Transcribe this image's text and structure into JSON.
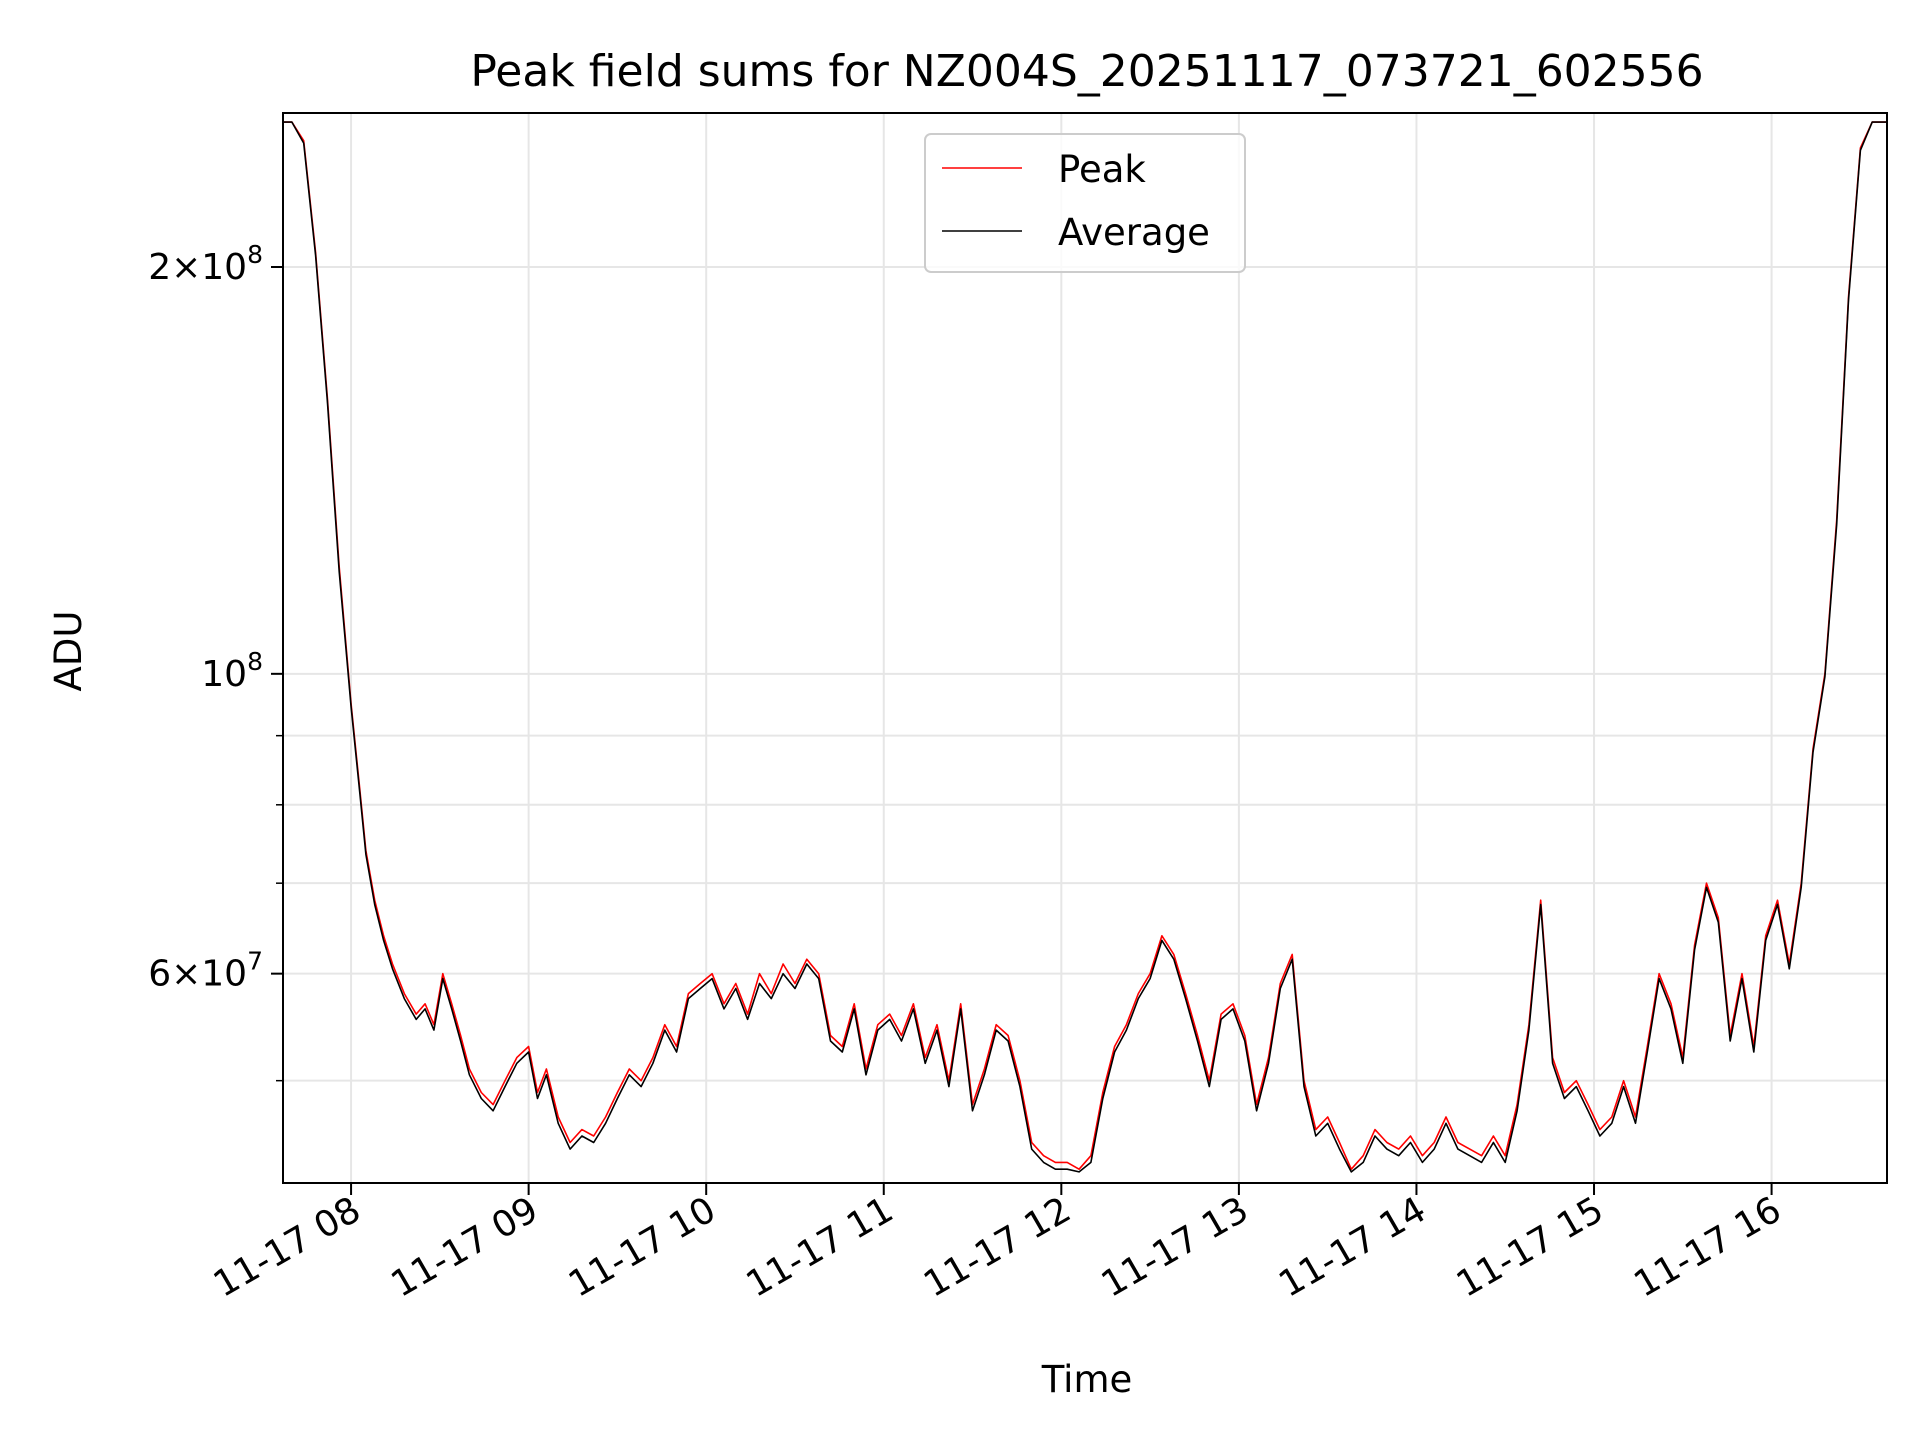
{
  "chart_data": {
    "type": "line",
    "title": "Peak field sums for NZ004S_20251117_073721_602556",
    "xlabel": "Time",
    "ylabel": "ADU",
    "y_scale": "log",
    "grid": true,
    "legend_position": "top-center",
    "xlim": [
      "2025-11-17 07:37",
      "2025-11-17 16:39"
    ],
    "ylim": [
      42000000,
      260000000
    ],
    "x_ticks": [
      {
        "value": "2025-11-17 08:00",
        "label": "11-17 08"
      },
      {
        "value": "2025-11-17 09:00",
        "label": "11-17 09"
      },
      {
        "value": "2025-11-17 10:00",
        "label": "11-17 10"
      },
      {
        "value": "2025-11-17 11:00",
        "label": "11-17 11"
      },
      {
        "value": "2025-11-17 12:00",
        "label": "11-17 12"
      },
      {
        "value": "2025-11-17 13:00",
        "label": "11-17 13"
      },
      {
        "value": "2025-11-17 14:00",
        "label": "11-17 14"
      },
      {
        "value": "2025-11-17 15:00",
        "label": "11-17 15"
      },
      {
        "value": "2025-11-17 16:00",
        "label": "11-17 16"
      }
    ],
    "y_major_ticks": [
      {
        "value": 200000000,
        "mantissa": "2",
        "exponent": "8"
      },
      {
        "value": 100000000,
        "mantissa": "",
        "exponent": "8"
      },
      {
        "value": 60000000,
        "mantissa": "6",
        "exponent": "7"
      }
    ],
    "y_minor_grid": [
      50000000,
      70000000,
      80000000,
      90000000
    ],
    "series": [
      {
        "name": "Peak",
        "color": "#ff0000",
        "x": [
          "2025-11-17 07:37",
          "2025-11-17 07:40",
          "2025-11-17 07:44",
          "2025-11-17 07:48",
          "2025-11-17 07:52",
          "2025-11-17 07:56",
          "2025-11-17 08:00",
          "2025-11-17 08:03",
          "2025-11-17 08:05",
          "2025-11-17 08:08",
          "2025-11-17 08:11",
          "2025-11-17 08:14",
          "2025-11-17 08:18",
          "2025-11-17 08:22",
          "2025-11-17 08:25",
          "2025-11-17 08:28",
          "2025-11-17 08:31",
          "2025-11-17 08:34",
          "2025-11-17 08:37",
          "2025-11-17 08:40",
          "2025-11-17 08:44",
          "2025-11-17 08:48",
          "2025-11-17 08:52",
          "2025-11-17 08:56",
          "2025-11-17 09:00",
          "2025-11-17 09:03",
          "2025-11-17 09:06",
          "2025-11-17 09:10",
          "2025-11-17 09:14",
          "2025-11-17 09:18",
          "2025-11-17 09:22",
          "2025-11-17 09:26",
          "2025-11-17 09:30",
          "2025-11-17 09:34",
          "2025-11-17 09:38",
          "2025-11-17 09:42",
          "2025-11-17 09:46",
          "2025-11-17 09:50",
          "2025-11-17 09:54",
          "2025-11-17 09:58",
          "2025-11-17 10:02",
          "2025-11-17 10:06",
          "2025-11-17 10:10",
          "2025-11-17 10:14",
          "2025-11-17 10:18",
          "2025-11-17 10:22",
          "2025-11-17 10:26",
          "2025-11-17 10:30",
          "2025-11-17 10:34",
          "2025-11-17 10:38",
          "2025-11-17 10:42",
          "2025-11-17 10:46",
          "2025-11-17 10:50",
          "2025-11-17 10:54",
          "2025-11-17 10:58",
          "2025-11-17 11:02",
          "2025-11-17 11:06",
          "2025-11-17 11:10",
          "2025-11-17 11:14",
          "2025-11-17 11:18",
          "2025-11-17 11:22",
          "2025-11-17 11:26",
          "2025-11-17 11:30",
          "2025-11-17 11:34",
          "2025-11-17 11:38",
          "2025-11-17 11:42",
          "2025-11-17 11:46",
          "2025-11-17 11:50",
          "2025-11-17 11:54",
          "2025-11-17 11:58",
          "2025-11-17 12:02",
          "2025-11-17 12:06",
          "2025-11-17 12:10",
          "2025-11-17 12:14",
          "2025-11-17 12:18",
          "2025-11-17 12:22",
          "2025-11-17 12:26",
          "2025-11-17 12:30",
          "2025-11-17 12:34",
          "2025-11-17 12:38",
          "2025-11-17 12:42",
          "2025-11-17 12:46",
          "2025-11-17 12:50",
          "2025-11-17 12:54",
          "2025-11-17 12:58",
          "2025-11-17 13:02",
          "2025-11-17 13:06",
          "2025-11-17 13:10",
          "2025-11-17 13:14",
          "2025-11-17 13:18",
          "2025-11-17 13:22",
          "2025-11-17 13:26",
          "2025-11-17 13:30",
          "2025-11-17 13:34",
          "2025-11-17 13:38",
          "2025-11-17 13:42",
          "2025-11-17 13:46",
          "2025-11-17 13:50",
          "2025-11-17 13:54",
          "2025-11-17 13:58",
          "2025-11-17 14:02",
          "2025-11-17 14:06",
          "2025-11-17 14:10",
          "2025-11-17 14:14",
          "2025-11-17 14:18",
          "2025-11-17 14:22",
          "2025-11-17 14:26",
          "2025-11-17 14:30",
          "2025-11-17 14:34",
          "2025-11-17 14:38",
          "2025-11-17 14:42",
          "2025-11-17 14:46",
          "2025-11-17 14:50",
          "2025-11-17 14:54",
          "2025-11-17 14:58",
          "2025-11-17 15:02",
          "2025-11-17 15:06",
          "2025-11-17 15:10",
          "2025-11-17 15:14",
          "2025-11-17 15:18",
          "2025-11-17 15:22",
          "2025-11-17 15:26",
          "2025-11-17 15:30",
          "2025-11-17 15:34",
          "2025-11-17 15:38",
          "2025-11-17 15:42",
          "2025-11-17 15:46",
          "2025-11-17 15:50",
          "2025-11-17 15:54",
          "2025-11-17 15:58",
          "2025-11-17 16:02",
          "2025-11-17 16:06",
          "2025-11-17 16:10",
          "2025-11-17 16:14",
          "2025-11-17 16:18",
          "2025-11-17 16:22",
          "2025-11-17 16:26",
          "2025-11-17 16:30",
          "2025-11-17 16:34",
          "2025-11-17 16:39"
        ],
        "y": [
          256000000,
          256000000,
          248000000,
          205000000,
          160000000,
          120000000,
          95000000,
          82000000,
          74000000,
          68000000,
          64000000,
          61000000,
          58000000,
          56000000,
          57000000,
          55000000,
          60000000,
          57000000,
          54000000,
          51000000,
          49000000,
          48000000,
          50000000,
          52000000,
          53000000,
          49000000,
          51000000,
          47000000,
          45000000,
          46000000,
          45500000,
          47000000,
          49000000,
          51000000,
          50000000,
          52000000,
          55000000,
          53000000,
          58000000,
          59000000,
          60000000,
          57000000,
          59000000,
          56000000,
          60000000,
          58000000,
          61000000,
          59000000,
          61500000,
          60000000,
          54000000,
          53000000,
          57000000,
          51000000,
          55000000,
          56000000,
          54000000,
          57000000,
          52000000,
          55000000,
          50000000,
          57000000,
          48000000,
          51000000,
          55000000,
          54000000,
          50000000,
          45000000,
          44000000,
          43500000,
          43500000,
          43000000,
          44000000,
          49000000,
          53000000,
          55000000,
          58000000,
          60000000,
          64000000,
          62000000,
          58000000,
          54000000,
          50000000,
          56000000,
          57000000,
          54000000,
          48000000,
          52000000,
          59000000,
          62000000,
          50000000,
          46000000,
          47000000,
          45000000,
          43000000,
          44000000,
          46000000,
          45000000,
          44500000,
          45500000,
          44000000,
          45000000,
          47000000,
          45000000,
          44500000,
          44000000,
          45500000,
          44000000,
          48000000,
          55000000,
          68000000,
          52000000,
          49000000,
          50000000,
          48000000,
          46000000,
          47000000,
          50000000,
          47000000,
          53000000,
          60000000,
          57000000,
          52000000,
          63000000,
          70000000,
          66000000,
          54000000,
          60000000,
          53000000,
          64000000,
          68000000,
          61000000,
          70000000,
          88000000,
          100000000,
          130000000,
          190000000,
          245000000,
          256000000,
          256000000
        ]
      },
      {
        "name": "Average",
        "color": "#000000",
        "x": [
          "2025-11-17 07:37",
          "2025-11-17 07:40",
          "2025-11-17 07:44",
          "2025-11-17 07:48",
          "2025-11-17 07:52",
          "2025-11-17 07:56",
          "2025-11-17 08:00",
          "2025-11-17 08:03",
          "2025-11-17 08:05",
          "2025-11-17 08:08",
          "2025-11-17 08:11",
          "2025-11-17 08:14",
          "2025-11-17 08:18",
          "2025-11-17 08:22",
          "2025-11-17 08:25",
          "2025-11-17 08:28",
          "2025-11-17 08:31",
          "2025-11-17 08:34",
          "2025-11-17 08:37",
          "2025-11-17 08:40",
          "2025-11-17 08:44",
          "2025-11-17 08:48",
          "2025-11-17 08:52",
          "2025-11-17 08:56",
          "2025-11-17 09:00",
          "2025-11-17 09:03",
          "2025-11-17 09:06",
          "2025-11-17 09:10",
          "2025-11-17 09:14",
          "2025-11-17 09:18",
          "2025-11-17 09:22",
          "2025-11-17 09:26",
          "2025-11-17 09:30",
          "2025-11-17 09:34",
          "2025-11-17 09:38",
          "2025-11-17 09:42",
          "2025-11-17 09:46",
          "2025-11-17 09:50",
          "2025-11-17 09:54",
          "2025-11-17 09:58",
          "2025-11-17 10:02",
          "2025-11-17 10:06",
          "2025-11-17 10:10",
          "2025-11-17 10:14",
          "2025-11-17 10:18",
          "2025-11-17 10:22",
          "2025-11-17 10:26",
          "2025-11-17 10:30",
          "2025-11-17 10:34",
          "2025-11-17 10:38",
          "2025-11-17 10:42",
          "2025-11-17 10:46",
          "2025-11-17 10:50",
          "2025-11-17 10:54",
          "2025-11-17 10:58",
          "2025-11-17 11:02",
          "2025-11-17 11:06",
          "2025-11-17 11:10",
          "2025-11-17 11:14",
          "2025-11-17 11:18",
          "2025-11-17 11:22",
          "2025-11-17 11:26",
          "2025-11-17 11:30",
          "2025-11-17 11:34",
          "2025-11-17 11:38",
          "2025-11-17 11:42",
          "2025-11-17 11:46",
          "2025-11-17 11:50",
          "2025-11-17 11:54",
          "2025-11-17 11:58",
          "2025-11-17 12:02",
          "2025-11-17 12:06",
          "2025-11-17 12:10",
          "2025-11-17 12:14",
          "2025-11-17 12:18",
          "2025-11-17 12:22",
          "2025-11-17 12:26",
          "2025-11-17 12:30",
          "2025-11-17 12:34",
          "2025-11-17 12:38",
          "2025-11-17 12:42",
          "2025-11-17 12:46",
          "2025-11-17 12:50",
          "2025-11-17 12:54",
          "2025-11-17 12:58",
          "2025-11-17 13:02",
          "2025-11-17 13:06",
          "2025-11-17 13:10",
          "2025-11-17 13:14",
          "2025-11-17 13:18",
          "2025-11-17 13:22",
          "2025-11-17 13:26",
          "2025-11-17 13:30",
          "2025-11-17 13:34",
          "2025-11-17 13:38",
          "2025-11-17 13:42",
          "2025-11-17 13:46",
          "2025-11-17 13:50",
          "2025-11-17 13:54",
          "2025-11-17 13:58",
          "2025-11-17 14:02",
          "2025-11-17 14:06",
          "2025-11-17 14:10",
          "2025-11-17 14:14",
          "2025-11-17 14:18",
          "2025-11-17 14:22",
          "2025-11-17 14:26",
          "2025-11-17 14:30",
          "2025-11-17 14:34",
          "2025-11-17 14:38",
          "2025-11-17 14:42",
          "2025-11-17 14:46",
          "2025-11-17 14:50",
          "2025-11-17 14:54",
          "2025-11-17 14:58",
          "2025-11-17 15:02",
          "2025-11-17 15:06",
          "2025-11-17 15:10",
          "2025-11-17 15:14",
          "2025-11-17 15:18",
          "2025-11-17 15:22",
          "2025-11-17 15:26",
          "2025-11-17 15:30",
          "2025-11-17 15:34",
          "2025-11-17 15:38",
          "2025-11-17 15:42",
          "2025-11-17 15:46",
          "2025-11-17 15:50",
          "2025-11-17 15:54",
          "2025-11-17 15:58",
          "2025-11-17 16:02",
          "2025-11-17 16:06",
          "2025-11-17 16:10",
          "2025-11-17 16:14",
          "2025-11-17 16:18",
          "2025-11-17 16:22",
          "2025-11-17 16:26",
          "2025-11-17 16:30",
          "2025-11-17 16:34",
          "2025-11-17 16:39"
        ],
        "y": [
          256000000,
          256000000,
          247000000,
          204000000,
          159000000,
          119000000,
          94500000,
          81500000,
          73500000,
          67500000,
          63500000,
          60500000,
          57500000,
          55500000,
          56500000,
          54500000,
          59500000,
          56500000,
          53500000,
          50500000,
          48500000,
          47500000,
          49500000,
          51500000,
          52500000,
          48500000,
          50500000,
          46500000,
          44500000,
          45500000,
          45000000,
          46500000,
          48500000,
          50500000,
          49500000,
          51500000,
          54500000,
          52500000,
          57500000,
          58500000,
          59500000,
          56500000,
          58500000,
          55500000,
          59000000,
          57500000,
          60000000,
          58500000,
          61000000,
          59500000,
          53500000,
          52500000,
          56500000,
          50500000,
          54500000,
          55500000,
          53500000,
          56500000,
          51500000,
          54500000,
          49500000,
          56500000,
          47500000,
          50500000,
          54500000,
          53500000,
          49500000,
          44500000,
          43500000,
          43000000,
          43000000,
          42800000,
          43500000,
          48500000,
          52500000,
          54500000,
          57500000,
          59500000,
          63500000,
          61500000,
          57500000,
          53500000,
          49500000,
          55500000,
          56500000,
          53500000,
          47500000,
          51500000,
          58500000,
          61500000,
          49500000,
          45500000,
          46500000,
          44500000,
          42800000,
          43500000,
          45500000,
          44500000,
          44000000,
          45000000,
          43500000,
          44500000,
          46500000,
          44500000,
          44000000,
          43500000,
          45000000,
          43500000,
          47500000,
          54500000,
          67500000,
          51500000,
          48500000,
          49500000,
          47500000,
          45500000,
          46500000,
          49500000,
          46500000,
          52500000,
          59500000,
          56500000,
          51500000,
          62500000,
          69500000,
          65500000,
          53500000,
          59500000,
          52500000,
          63500000,
          67500000,
          60500000,
          69500000,
          87500000,
          99500000,
          129000000,
          189000000,
          244000000,
          256000000,
          256000000
        ]
      }
    ]
  }
}
